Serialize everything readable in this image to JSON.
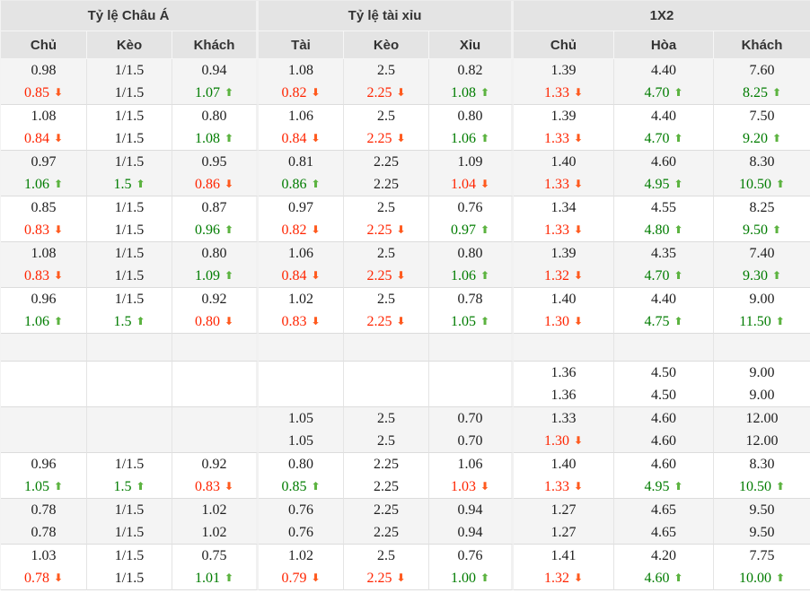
{
  "header": {
    "groups": [
      {
        "label": "Tỷ lệ Châu Á"
      },
      {
        "label": "Tỷ lệ tài xỉu"
      },
      {
        "label": "1X2"
      }
    ],
    "columns": [
      "Chủ",
      "Kèo",
      "Khách",
      "Tài",
      "Kèo",
      "Xỉu",
      "Chủ",
      "Hòa",
      "Khách"
    ]
  },
  "icons": {
    "trend_up": "⬆",
    "trend_down": "⬇"
  },
  "colors": {
    "up_text": "#007c00",
    "down_text": "#ff2400",
    "up_arrow": "#5cb340",
    "down_arrow": "#ff5a1e",
    "header_bg": "#e4e4e4",
    "row_gray_bg": "#f4f4f4",
    "row_white_bg": "#ffffff"
  },
  "rows": [
    {
      "type": "data",
      "shade": "gray",
      "cells": [
        {
          "v1": "0.98",
          "v2": "0.85",
          "t": "down"
        },
        {
          "v1": "1/1.5",
          "v2": "1/1.5",
          "t": ""
        },
        {
          "v1": "0.94",
          "v2": "1.07",
          "t": "up"
        },
        {
          "v1": "1.08",
          "v2": "0.82",
          "t": "down"
        },
        {
          "v1": "2.5",
          "v2": "2.25",
          "t": "down"
        },
        {
          "v1": "0.82",
          "v2": "1.08",
          "t": "up"
        },
        {
          "v1": "1.39",
          "v2": "1.33",
          "t": "down"
        },
        {
          "v1": "4.40",
          "v2": "4.70",
          "t": "up"
        },
        {
          "v1": "7.60",
          "v2": "8.25",
          "t": "up"
        }
      ]
    },
    {
      "type": "data",
      "shade": "white",
      "cells": [
        {
          "v1": "1.08",
          "v2": "0.84",
          "t": "down"
        },
        {
          "v1": "1/1.5",
          "v2": "1/1.5",
          "t": ""
        },
        {
          "v1": "0.80",
          "v2": "1.08",
          "t": "up"
        },
        {
          "v1": "1.06",
          "v2": "0.84",
          "t": "down"
        },
        {
          "v1": "2.5",
          "v2": "2.25",
          "t": "down"
        },
        {
          "v1": "0.80",
          "v2": "1.06",
          "t": "up"
        },
        {
          "v1": "1.39",
          "v2": "1.33",
          "t": "down"
        },
        {
          "v1": "4.40",
          "v2": "4.70",
          "t": "up"
        },
        {
          "v1": "7.50",
          "v2": "9.20",
          "t": "up"
        }
      ]
    },
    {
      "type": "data",
      "shade": "gray",
      "cells": [
        {
          "v1": "0.97",
          "v2": "1.06",
          "t": "up"
        },
        {
          "v1": "1/1.5",
          "v2": "1.5",
          "t": "up"
        },
        {
          "v1": "0.95",
          "v2": "0.86",
          "t": "down"
        },
        {
          "v1": "0.81",
          "v2": "0.86",
          "t": "up"
        },
        {
          "v1": "2.25",
          "v2": "2.25",
          "t": ""
        },
        {
          "v1": "1.09",
          "v2": "1.04",
          "t": "down"
        },
        {
          "v1": "1.40",
          "v2": "1.33",
          "t": "down"
        },
        {
          "v1": "4.60",
          "v2": "4.95",
          "t": "up"
        },
        {
          "v1": "8.30",
          "v2": "10.50",
          "t": "up"
        }
      ]
    },
    {
      "type": "data",
      "shade": "white",
      "cells": [
        {
          "v1": "0.85",
          "v2": "0.83",
          "t": "down"
        },
        {
          "v1": "1/1.5",
          "v2": "1/1.5",
          "t": ""
        },
        {
          "v1": "0.87",
          "v2": "0.96",
          "t": "up"
        },
        {
          "v1": "0.97",
          "v2": "0.82",
          "t": "down"
        },
        {
          "v1": "2.5",
          "v2": "2.25",
          "t": "down"
        },
        {
          "v1": "0.76",
          "v2": "0.97",
          "t": "up"
        },
        {
          "v1": "1.34",
          "v2": "1.33",
          "t": "down"
        },
        {
          "v1": "4.55",
          "v2": "4.80",
          "t": "up"
        },
        {
          "v1": "8.25",
          "v2": "9.50",
          "t": "up"
        }
      ]
    },
    {
      "type": "data",
      "shade": "gray",
      "cells": [
        {
          "v1": "1.08",
          "v2": "0.83",
          "t": "down"
        },
        {
          "v1": "1/1.5",
          "v2": "1/1.5",
          "t": ""
        },
        {
          "v1": "0.80",
          "v2": "1.09",
          "t": "up"
        },
        {
          "v1": "1.06",
          "v2": "0.84",
          "t": "down"
        },
        {
          "v1": "2.5",
          "v2": "2.25",
          "t": "down"
        },
        {
          "v1": "0.80",
          "v2": "1.06",
          "t": "up"
        },
        {
          "v1": "1.39",
          "v2": "1.32",
          "t": "down"
        },
        {
          "v1": "4.35",
          "v2": "4.70",
          "t": "up"
        },
        {
          "v1": "7.40",
          "v2": "9.30",
          "t": "up"
        }
      ]
    },
    {
      "type": "data",
      "shade": "white",
      "cells": [
        {
          "v1": "0.96",
          "v2": "1.06",
          "t": "up"
        },
        {
          "v1": "1/1.5",
          "v2": "1.5",
          "t": "up"
        },
        {
          "v1": "0.92",
          "v2": "0.80",
          "t": "down"
        },
        {
          "v1": "1.02",
          "v2": "0.83",
          "t": "down"
        },
        {
          "v1": "2.5",
          "v2": "2.25",
          "t": "down"
        },
        {
          "v1": "0.78",
          "v2": "1.05",
          "t": "up"
        },
        {
          "v1": "1.40",
          "v2": "1.30",
          "t": "down"
        },
        {
          "v1": "4.40",
          "v2": "4.75",
          "t": "up"
        },
        {
          "v1": "9.00",
          "v2": "11.50",
          "t": "up"
        }
      ]
    },
    {
      "type": "spacer",
      "shade": "gray",
      "cells": [
        {
          "v1": "",
          "v2": "",
          "t": ""
        },
        {
          "v1": "",
          "v2": "",
          "t": ""
        },
        {
          "v1": "",
          "v2": "",
          "t": ""
        },
        {
          "v1": "",
          "v2": "",
          "t": ""
        },
        {
          "v1": "",
          "v2": "",
          "t": ""
        },
        {
          "v1": "",
          "v2": "",
          "t": ""
        },
        {
          "v1": "",
          "v2": "",
          "t": ""
        },
        {
          "v1": "",
          "v2": "",
          "t": ""
        },
        {
          "v1": "",
          "v2": "",
          "t": ""
        }
      ]
    },
    {
      "type": "data",
      "shade": "white",
      "cells": [
        {
          "v1": "",
          "v2": "",
          "t": ""
        },
        {
          "v1": "",
          "v2": "",
          "t": ""
        },
        {
          "v1": "",
          "v2": "",
          "t": ""
        },
        {
          "v1": "",
          "v2": "",
          "t": ""
        },
        {
          "v1": "",
          "v2": "",
          "t": ""
        },
        {
          "v1": "",
          "v2": "",
          "t": ""
        },
        {
          "v1": "1.36",
          "v2": "1.36",
          "t": ""
        },
        {
          "v1": "4.50",
          "v2": "4.50",
          "t": ""
        },
        {
          "v1": "9.00",
          "v2": "9.00",
          "t": ""
        }
      ]
    },
    {
      "type": "data",
      "shade": "gray",
      "cells": [
        {
          "v1": "",
          "v2": "",
          "t": ""
        },
        {
          "v1": "",
          "v2": "",
          "t": ""
        },
        {
          "v1": "",
          "v2": "",
          "t": ""
        },
        {
          "v1": "1.05",
          "v2": "1.05",
          "t": ""
        },
        {
          "v1": "2.5",
          "v2": "2.5",
          "t": ""
        },
        {
          "v1": "0.70",
          "v2": "0.70",
          "t": ""
        },
        {
          "v1": "1.33",
          "v2": "1.30",
          "t": "down"
        },
        {
          "v1": "4.60",
          "v2": "4.60",
          "t": ""
        },
        {
          "v1": "12.00",
          "v2": "12.00",
          "t": ""
        }
      ]
    },
    {
      "type": "data",
      "shade": "white",
      "cells": [
        {
          "v1": "0.96",
          "v2": "1.05",
          "t": "up"
        },
        {
          "v1": "1/1.5",
          "v2": "1.5",
          "t": "up"
        },
        {
          "v1": "0.92",
          "v2": "0.83",
          "t": "down"
        },
        {
          "v1": "0.80",
          "v2": "0.85",
          "t": "up"
        },
        {
          "v1": "2.25",
          "v2": "2.25",
          "t": ""
        },
        {
          "v1": "1.06",
          "v2": "1.03",
          "t": "down"
        },
        {
          "v1": "1.40",
          "v2": "1.33",
          "t": "down"
        },
        {
          "v1": "4.60",
          "v2": "4.95",
          "t": "up"
        },
        {
          "v1": "8.30",
          "v2": "10.50",
          "t": "up"
        }
      ]
    },
    {
      "type": "data",
      "shade": "gray",
      "cells": [
        {
          "v1": "0.78",
          "v2": "0.78",
          "t": ""
        },
        {
          "v1": "1/1.5",
          "v2": "1/1.5",
          "t": ""
        },
        {
          "v1": "1.02",
          "v2": "1.02",
          "t": ""
        },
        {
          "v1": "0.76",
          "v2": "0.76",
          "t": ""
        },
        {
          "v1": "2.25",
          "v2": "2.25",
          "t": ""
        },
        {
          "v1": "0.94",
          "v2": "0.94",
          "t": ""
        },
        {
          "v1": "1.27",
          "v2": "1.27",
          "t": ""
        },
        {
          "v1": "4.65",
          "v2": "4.65",
          "t": ""
        },
        {
          "v1": "9.50",
          "v2": "9.50",
          "t": ""
        }
      ]
    },
    {
      "type": "data",
      "shade": "white",
      "cells": [
        {
          "v1": "1.03",
          "v2": "0.78",
          "t": "down"
        },
        {
          "v1": "1/1.5",
          "v2": "1/1.5",
          "t": ""
        },
        {
          "v1": "0.75",
          "v2": "1.01",
          "t": "up"
        },
        {
          "v1": "1.02",
          "v2": "0.79",
          "t": "down"
        },
        {
          "v1": "2.5",
          "v2": "2.25",
          "t": "down"
        },
        {
          "v1": "0.76",
          "v2": "1.00",
          "t": "up"
        },
        {
          "v1": "1.41",
          "v2": "1.32",
          "t": "down"
        },
        {
          "v1": "4.20",
          "v2": "4.60",
          "t": "up"
        },
        {
          "v1": "7.75",
          "v2": "10.00",
          "t": "up"
        }
      ]
    }
  ]
}
